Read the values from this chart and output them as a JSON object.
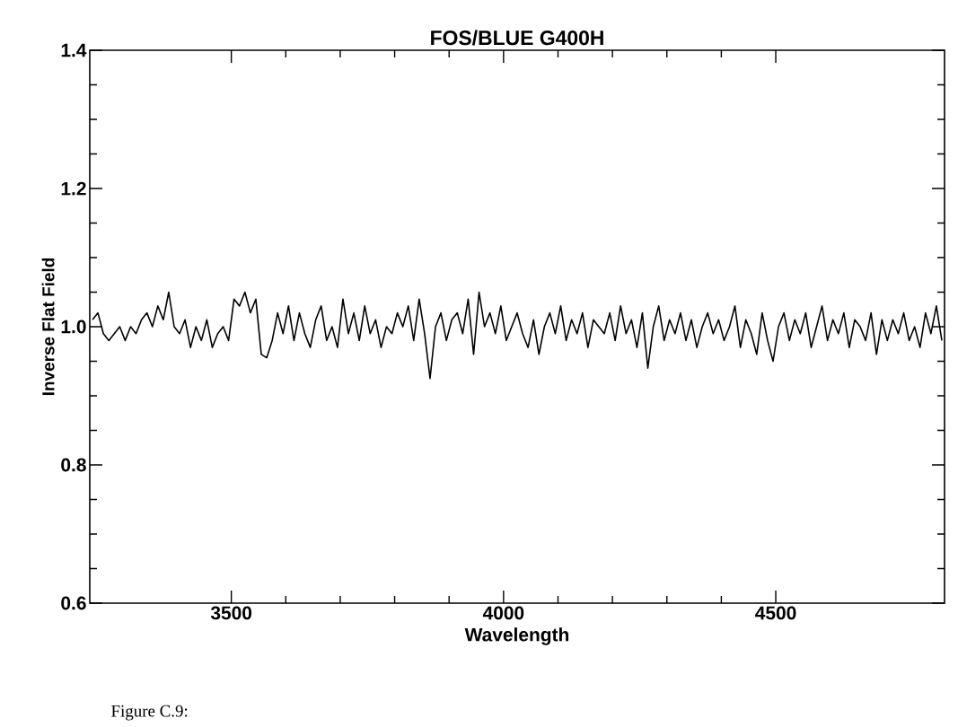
{
  "chart_data": {
    "type": "line",
    "title": "FOS/BLUE G400H",
    "xlabel": "Wavelength",
    "ylabel": "Inverse Flat Field",
    "annotations": [
      "Figure C.9:"
    ],
    "xlim": [
      3240,
      4810
    ],
    "ylim": [
      0.6,
      1.4
    ],
    "xticks": [
      {
        "value": 3500,
        "label": "3500"
      },
      {
        "value": 4000,
        "label": "4000"
      },
      {
        "value": 4500,
        "label": "4500"
      }
    ],
    "yticks": [
      {
        "value": 0.6,
        "label": "0.6"
      },
      {
        "value": 0.8,
        "label": "0.8"
      },
      {
        "value": 1.0,
        "label": "1.0"
      },
      {
        "value": 1.2,
        "label": "1.2"
      },
      {
        "value": 1.4,
        "label": "1.4"
      }
    ],
    "grid": false,
    "marker": "none",
    "line_style": "solid",
    "series": [
      {
        "color": "#000000",
        "x": [
          3245,
          3255,
          3265,
          3275,
          3285,
          3295,
          3305,
          3315,
          3325,
          3335,
          3345,
          3355,
          3365,
          3375,
          3385,
          3395,
          3405,
          3415,
          3425,
          3435,
          3445,
          3455,
          3465,
          3475,
          3485,
          3495,
          3505,
          3515,
          3525,
          3535,
          3545,
          3555,
          3565,
          3575,
          3585,
          3595,
          3605,
          3615,
          3625,
          3635,
          3645,
          3655,
          3665,
          3675,
          3685,
          3695,
          3705,
          3715,
          3725,
          3735,
          3745,
          3755,
          3765,
          3775,
          3785,
          3795,
          3805,
          3815,
          3825,
          3835,
          3845,
          3855,
          3865,
          3875,
          3885,
          3895,
          3905,
          3915,
          3925,
          3935,
          3945,
          3955,
          3965,
          3975,
          3985,
          3995,
          4005,
          4015,
          4025,
          4035,
          4045,
          4055,
          4065,
          4075,
          4085,
          4095,
          4105,
          4115,
          4125,
          4135,
          4145,
          4155,
          4165,
          4175,
          4185,
          4195,
          4205,
          4215,
          4225,
          4235,
          4245,
          4255,
          4265,
          4275,
          4285,
          4295,
          4305,
          4315,
          4325,
          4335,
          4345,
          4355,
          4365,
          4375,
          4385,
          4395,
          4405,
          4415,
          4425,
          4435,
          4445,
          4455,
          4465,
          4475,
          4485,
          4495,
          4505,
          4515,
          4525,
          4535,
          4545,
          4555,
          4565,
          4575,
          4585,
          4595,
          4605,
          4615,
          4625,
          4635,
          4645,
          4655,
          4665,
          4675,
          4685,
          4695,
          4705,
          4715,
          4725,
          4735,
          4745,
          4755,
          4765,
          4775,
          4785,
          4795,
          4805
        ],
        "values": [
          1.01,
          1.02,
          0.99,
          0.98,
          0.99,
          1.0,
          0.98,
          1.0,
          0.99,
          1.01,
          1.02,
          1.0,
          1.03,
          1.01,
          1.05,
          1.0,
          0.99,
          1.01,
          0.97,
          1.0,
          0.98,
          1.01,
          0.97,
          0.99,
          1.0,
          0.98,
          1.04,
          1.03,
          1.05,
          1.02,
          1.04,
          0.96,
          0.955,
          0.98,
          1.02,
          0.99,
          1.03,
          0.98,
          1.02,
          0.99,
          0.97,
          1.01,
          1.03,
          0.98,
          1.0,
          0.97,
          1.04,
          0.99,
          1.02,
          0.98,
          1.03,
          0.99,
          1.01,
          0.97,
          1.0,
          0.99,
          1.02,
          1.0,
          1.03,
          0.98,
          1.04,
          0.99,
          0.925,
          1.0,
          1.02,
          0.98,
          1.01,
          1.02,
          0.99,
          1.04,
          0.96,
          1.05,
          1.0,
          1.02,
          0.99,
          1.03,
          0.98,
          1.0,
          1.02,
          0.99,
          0.97,
          1.01,
          0.96,
          1.0,
          1.02,
          0.99,
          1.03,
          0.98,
          1.01,
          0.99,
          1.02,
          0.97,
          1.01,
          1.0,
          0.99,
          1.02,
          0.98,
          1.03,
          0.99,
          1.01,
          0.97,
          1.02,
          0.94,
          1.0,
          1.03,
          0.98,
          1.01,
          0.99,
          1.02,
          0.98,
          1.01,
          0.97,
          1.0,
          1.02,
          0.99,
          1.01,
          0.98,
          1.0,
          1.03,
          0.97,
          1.01,
          0.99,
          0.96,
          1.02,
          0.98,
          0.95,
          1.0,
          1.02,
          0.98,
          1.01,
          0.99,
          1.02,
          0.97,
          1.0,
          1.03,
          0.98,
          1.01,
          0.99,
          1.02,
          0.97,
          1.01,
          1.0,
          0.98,
          1.02,
          0.96,
          1.01,
          0.98,
          1.01,
          0.99,
          1.02,
          0.98,
          1.0,
          0.97,
          1.02,
          0.99,
          1.03,
          0.98
        ]
      }
    ]
  }
}
